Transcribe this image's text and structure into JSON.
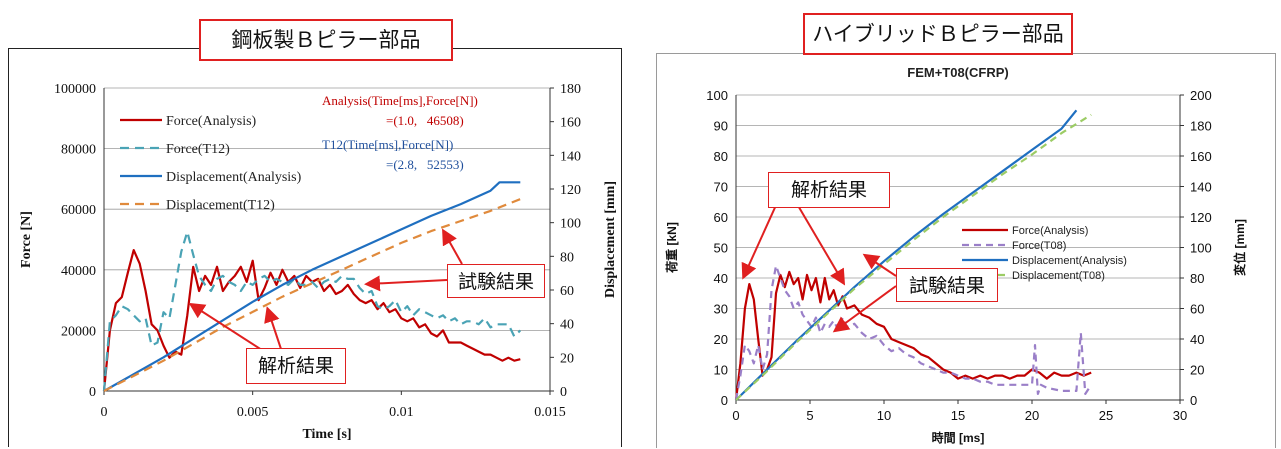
{
  "left_title": "鋼板製Ｂピラー部品",
  "right_title": "ハイブリッドＢピラー部品",
  "callouts": {
    "left_analysis": "解析結果",
    "left_test": "試験結果",
    "right_analysis": "解析結果",
    "right_test": "試験結果"
  },
  "left_annotations": {
    "analysis_line1": "Analysis(Time[ms],Force[N])",
    "analysis_line2": "=(1.0,   46508)",
    "test_line1": "T12(Time[ms],Force[N])",
    "test_line2": "=(2.8,   52553)"
  },
  "colors": {
    "force_analysis": "#c00000",
    "force_test_left": "#4aa3b5",
    "disp_analysis": "#1f6fc0",
    "disp_test_left": "#e08a3c",
    "force_test_right": "#9a7fc8",
    "disp_test_right": "#9ccc65",
    "callout_border": "#e02020"
  },
  "chart_data": [
    {
      "type": "line",
      "title": "",
      "xlabel": "Time [s]",
      "ylabel": "Force [N]",
      "y2label": "Displacement [mm]",
      "xlim": [
        0,
        0.015
      ],
      "ylim": [
        0,
        100000
      ],
      "y2lim": [
        0,
        180
      ],
      "x_ticks": [
        "0",
        "0.005",
        "0.01",
        "0.015"
      ],
      "y_ticks": [
        "0",
        "20000",
        "40000",
        "60000",
        "80000",
        "100000"
      ],
      "y2_ticks": [
        "0",
        "20",
        "40",
        "60",
        "80",
        "100",
        "120",
        "140",
        "160",
        "180"
      ],
      "grid": true,
      "legend_position": "top-left",
      "series": [
        {
          "name": "Force(Analysis)",
          "axis": "y",
          "style": "solid",
          "color": "#c00000",
          "x": [
            0,
            0.0002,
            0.0004,
            0.0006,
            0.0008,
            0.001,
            0.0012,
            0.0014,
            0.0016,
            0.0018,
            0.002,
            0.0022,
            0.0024,
            0.0026,
            0.0028,
            0.003,
            0.0032,
            0.0034,
            0.0036,
            0.0038,
            0.004,
            0.0042,
            0.0044,
            0.0046,
            0.0048,
            0.005,
            0.0052,
            0.0054,
            0.0056,
            0.0058,
            0.006,
            0.0062,
            0.0064,
            0.0066,
            0.0068,
            0.007,
            0.0072,
            0.0074,
            0.0076,
            0.0078,
            0.008,
            0.0082,
            0.0084,
            0.0086,
            0.0088,
            0.009,
            0.0092,
            0.0094,
            0.0096,
            0.0098,
            0.01,
            0.0102,
            0.0104,
            0.0106,
            0.0108,
            0.011,
            0.0112,
            0.0114,
            0.0116,
            0.0118,
            0.012,
            0.0122,
            0.0124,
            0.0126,
            0.0128,
            0.013,
            0.0132,
            0.0134,
            0.0136,
            0.0138,
            0.014
          ],
          "y": [
            0,
            20000,
            29000,
            31000,
            39000,
            46508,
            42000,
            33000,
            22000,
            20000,
            15000,
            11000,
            13000,
            12000,
            25000,
            41000,
            33000,
            38000,
            35000,
            41000,
            33000,
            36000,
            38000,
            41000,
            36000,
            43000,
            30000,
            34000,
            39000,
            35000,
            40000,
            36000,
            38000,
            34000,
            38000,
            36000,
            37000,
            33000,
            35000,
            32000,
            33000,
            35000,
            32000,
            30000,
            29000,
            30000,
            27000,
            29000,
            26000,
            27000,
            24000,
            23000,
            24000,
            21000,
            22000,
            19000,
            18000,
            20000,
            16000,
            16000,
            16000,
            15000,
            14000,
            13000,
            12000,
            12000,
            11000,
            10000,
            11000,
            10000,
            10500
          ]
        },
        {
          "name": "Force(T12)",
          "axis": "y",
          "style": "dashed",
          "color": "#4aa3b5",
          "x": [
            0,
            0.0002,
            0.0004,
            0.0006,
            0.0008,
            0.001,
            0.0012,
            0.0014,
            0.0016,
            0.0018,
            0.002,
            0.0022,
            0.0024,
            0.0026,
            0.0028,
            0.003,
            0.0032,
            0.0034,
            0.0036,
            0.0038,
            0.004,
            0.0042,
            0.0044,
            0.0046,
            0.0048,
            0.005,
            0.0052,
            0.0054,
            0.0056,
            0.0058,
            0.006,
            0.0062,
            0.0064,
            0.0066,
            0.0068,
            0.007,
            0.0072,
            0.0074,
            0.0076,
            0.0078,
            0.008,
            0.0082,
            0.0084,
            0.0086,
            0.0088,
            0.009,
            0.0092,
            0.0094,
            0.0096,
            0.0098,
            0.01,
            0.0102,
            0.0104,
            0.0106,
            0.0108,
            0.011,
            0.0112,
            0.0114,
            0.0116,
            0.0118,
            0.012,
            0.0122,
            0.0124,
            0.0126,
            0.0128,
            0.013,
            0.0132,
            0.0134,
            0.0136,
            0.0138,
            0.014
          ],
          "y": [
            0,
            23000,
            25000,
            28000,
            27000,
            25000,
            23000,
            24000,
            15000,
            16000,
            26000,
            24000,
            35000,
            46000,
            52553,
            45000,
            38000,
            35000,
            33000,
            37000,
            38000,
            36000,
            35000,
            33000,
            36000,
            35000,
            37000,
            38000,
            36000,
            37000,
            36000,
            35000,
            37000,
            35000,
            35000,
            36000,
            34000,
            36000,
            37000,
            36000,
            38000,
            37000,
            37000,
            34000,
            32000,
            33000,
            28000,
            27000,
            28000,
            30000,
            26000,
            28000,
            25000,
            27000,
            26000,
            25000,
            24000,
            25000,
            23000,
            24000,
            22000,
            23000,
            23000,
            22000,
            24000,
            21000,
            22000,
            22000,
            22000,
            18000,
            20000
          ]
        },
        {
          "name": "Displacement(Analysis)",
          "axis": "y2",
          "style": "solid",
          "color": "#1f6fc0",
          "x": [
            0,
            0.001,
            0.002,
            0.003,
            0.004,
            0.005,
            0.006,
            0.007,
            0.008,
            0.009,
            0.01,
            0.011,
            0.012,
            0.013,
            0.0133,
            0.014
          ],
          "y": [
            0,
            10,
            20,
            31,
            42,
            53,
            63,
            72,
            80,
            88,
            96,
            104,
            111,
            119,
            124,
            124
          ]
        },
        {
          "name": "Displacement(T12)",
          "axis": "y2",
          "style": "dashed",
          "color": "#e08a3c",
          "x": [
            0,
            0.001,
            0.002,
            0.003,
            0.004,
            0.005,
            0.006,
            0.007,
            0.008,
            0.009,
            0.01,
            0.011,
            0.012,
            0.013,
            0.014
          ],
          "y": [
            0,
            9,
            18,
            28,
            38,
            47,
            56,
            64,
            72,
            80,
            88,
            95,
            101,
            107,
            114
          ]
        }
      ]
    },
    {
      "type": "line",
      "title": "FEM+T08(CFRP)",
      "xlabel": "時間 [ms]",
      "ylabel": "荷重 [kN]",
      "y2label": "変位 [mm]",
      "xlim": [
        0,
        30
      ],
      "ylim": [
        0,
        100
      ],
      "y2lim": [
        0,
        200
      ],
      "x_ticks": [
        "0",
        "5",
        "10",
        "15",
        "20",
        "25",
        "30"
      ],
      "y_ticks": [
        "0",
        "10",
        "20",
        "30",
        "40",
        "50",
        "60",
        "70",
        "80",
        "90",
        "100"
      ],
      "y2_ticks": [
        "0",
        "20",
        "40",
        "60",
        "80",
        "100",
        "120",
        "140",
        "160",
        "180",
        "200"
      ],
      "grid": true,
      "legend_position": "center-right",
      "series": [
        {
          "name": "Force(Analysis)",
          "axis": "y",
          "style": "solid",
          "color": "#c00000",
          "x": [
            0,
            0.3,
            0.6,
            0.9,
            1.2,
            1.5,
            1.8,
            2.1,
            2.4,
            2.7,
            3,
            3.3,
            3.6,
            3.9,
            4.2,
            4.5,
            4.8,
            5.1,
            5.4,
            5.7,
            6,
            6.3,
            6.6,
            6.9,
            7.2,
            7.5,
            8,
            8.5,
            9,
            9.5,
            10,
            10.5,
            11,
            11.5,
            12,
            12.5,
            13,
            13.5,
            14,
            14.5,
            15,
            15.5,
            16,
            16.5,
            17,
            17.5,
            18,
            18.5,
            19,
            19.5,
            20,
            20.5,
            21,
            21.5,
            22,
            22.5,
            23,
            23.5,
            24
          ],
          "y": [
            0,
            12,
            30,
            38,
            33,
            20,
            8,
            10,
            14,
            35,
            41,
            37,
            42,
            38,
            40,
            33,
            41,
            36,
            40,
            32,
            40,
            33,
            36,
            31,
            34,
            30,
            31,
            28,
            27,
            25,
            24,
            20,
            19,
            18,
            17,
            15,
            14,
            12,
            10,
            9,
            7,
            8,
            7,
            8,
            7,
            8,
            8,
            7,
            8,
            8,
            10,
            9,
            7,
            9,
            8,
            8,
            9,
            8,
            9
          ]
        },
        {
          "name": "Force(T08)",
          "axis": "y",
          "style": "dashed",
          "color": "#9a7fc8",
          "x": [
            0,
            0.3,
            0.6,
            0.9,
            1.2,
            1.5,
            1.8,
            2.1,
            2.4,
            2.7,
            3,
            3.3,
            3.6,
            3.9,
            4.2,
            4.5,
            4.8,
            5.1,
            5.4,
            5.7,
            6,
            6.3,
            6.6,
            6.9,
            7.2,
            7.5,
            8,
            8.5,
            9,
            9.5,
            10,
            10.5,
            11,
            11.5,
            12,
            12.5,
            13,
            13.5,
            14,
            14.5,
            15,
            15.5,
            16,
            16.5,
            17,
            17.5,
            18,
            18.5,
            19,
            19.5,
            20,
            20.2,
            20.4,
            20.6,
            21,
            22,
            23,
            23.3,
            23.6,
            24
          ],
          "y": [
            0,
            8,
            18,
            16,
            12,
            18,
            10,
            15,
            36,
            44,
            40,
            36,
            34,
            30,
            32,
            28,
            26,
            24,
            27,
            22,
            25,
            24,
            26,
            23,
            27,
            24,
            25,
            22,
            20,
            21,
            18,
            16,
            17,
            15,
            14,
            12,
            11,
            10,
            9,
            9,
            8,
            7,
            7,
            6,
            6,
            5,
            5,
            5,
            5,
            5,
            5,
            18,
            2,
            5,
            4,
            3,
            3,
            22,
            2,
            5
          ]
        },
        {
          "name": "Displacement(Analysis)",
          "axis": "y2",
          "style": "solid",
          "color": "#1f6fc0",
          "x": [
            0,
            2,
            4,
            6,
            8,
            10,
            12,
            14,
            16,
            18,
            20,
            22,
            23
          ],
          "y": [
            0,
            19,
            38,
            56,
            74,
            91,
            107,
            122,
            136,
            150,
            164,
            178,
            190
          ]
        },
        {
          "name": "Displacement(T08)",
          "axis": "y2",
          "style": "dashed",
          "color": "#9ccc65",
          "x": [
            0,
            2,
            4,
            6,
            8,
            10,
            12,
            14,
            16,
            18,
            20,
            22,
            24
          ],
          "y": [
            0,
            18,
            37,
            55,
            73,
            89,
            105,
            120,
            134,
            148,
            161,
            175,
            187
          ]
        }
      ]
    }
  ]
}
